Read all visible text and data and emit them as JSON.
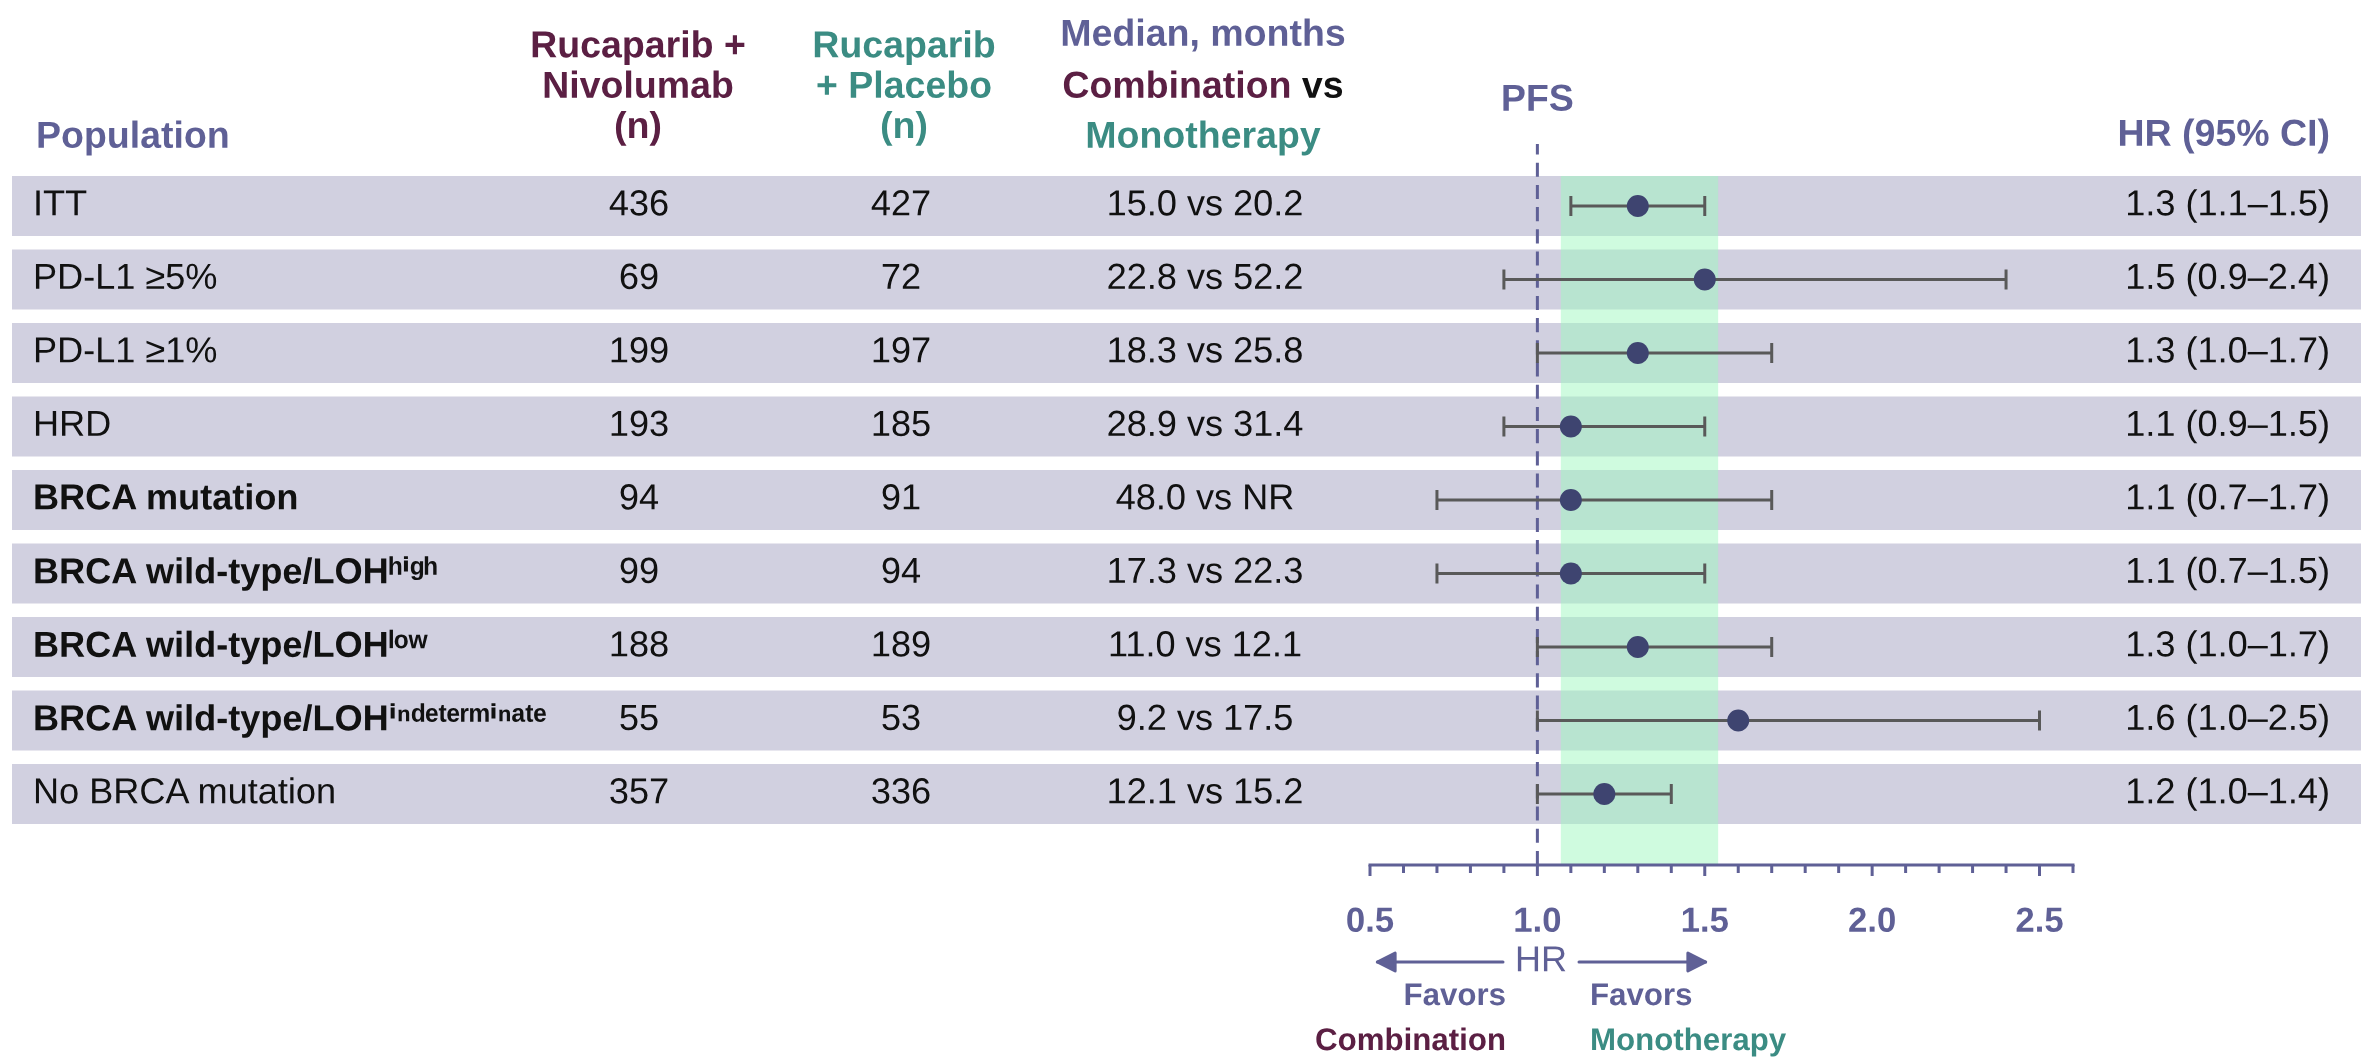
{
  "chart_data": {
    "type": "scatter",
    "orientation": "horizontal",
    "marker": "circle",
    "xlabel": "HR",
    "categories": [
      null,
      null,
      null,
      null,
      null,
      null,
      null,
      null,
      null
    ],
    "series": [
      {
        "color": "#3e4470",
        "values": [
          1.3,
          1.5,
          1.3,
          1.1,
          1.1,
          1.1,
          1.3,
          1.6,
          1.2
        ],
        "errors": [
          [
            1.1,
            1.5
          ],
          [
            0.9,
            2.4
          ],
          [
            1.0,
            1.7
          ],
          [
            0.9,
            1.5
          ],
          [
            0.7,
            1.7
          ],
          [
            0.7,
            1.5
          ],
          [
            1.0,
            1.7
          ],
          [
            1.0,
            2.5
          ],
          [
            1.0,
            1.4
          ]
        ],
        "value_labels": [
          "1.3 (1.1–1.5)",
          "1.5 (0.9–2.4)",
          "1.3 (1.0–1.7)",
          "1.1 (0.9–1.5)",
          "1.1 (0.7–1.7)",
          "1.1 (0.7–1.5)",
          "1.3 (1.0–1.7)",
          "1.6 (1.0–2.5)",
          "1.2 (1.0–1.4)"
        ]
      }
    ],
    "xlim": [
      0.5,
      2.6
    ],
    "xticks": [
      {
        "value": 0.5,
        "label": "0.5"
      },
      {
        "value": 1.0,
        "label": "1.0"
      },
      {
        "value": 1.5,
        "label": "1.5"
      },
      {
        "value": 2.0,
        "label": "2.0"
      },
      {
        "value": 2.5,
        "label": "2.5"
      }
    ],
    "ref_lines": [
      {
        "axis": "x",
        "value": 1.0,
        "label": "PFS",
        "color": "#5f6096",
        "line_style": "dashed"
      }
    ],
    "bands": [
      {
        "axis": "x",
        "from": 1.07,
        "to": 1.54,
        "color": "#9ff7c0"
      }
    ],
    "annotations": [
      "Population",
      "Rucaparib +\nNivolumab\n(n)",
      "Rucaparib\n+ Placebo\n(n)",
      "Median, months",
      "Combination",
      "vs",
      "Monotherapy",
      "HR (95% CI)",
      "ITT",
      "PD-L1 ≥5%",
      "PD-L1 ≥1%",
      "HRD",
      "BRCA mutation",
      "BRCA wild-type/LOHʰⁱᵍʰ",
      "BRCA wild-type/LOHˡᵒʷ",
      "BRCA wild-type/LOHⁱⁿᵈᵉᵗᵉʳᵐⁱⁿᵃᵗᵉ",
      "No BRCA mutation",
      "436",
      "69",
      "199",
      "193",
      "94",
      "99",
      "188",
      "55",
      "357",
      "427",
      "72",
      "197",
      "185",
      "91",
      "94",
      "189",
      "53",
      "336",
      "15.0 vs 20.2",
      "22.8 vs 52.2",
      "18.3 vs 25.8",
      "28.9 vs 31.4",
      "48.0 vs NR",
      "17.3 vs 22.3",
      "11.0 vs 12.1",
      "9.2 vs 17.5",
      "12.1 vs 15.2",
      "Favors",
      "Combination",
      "Favors",
      "Monotherapy"
    ]
  }
}
